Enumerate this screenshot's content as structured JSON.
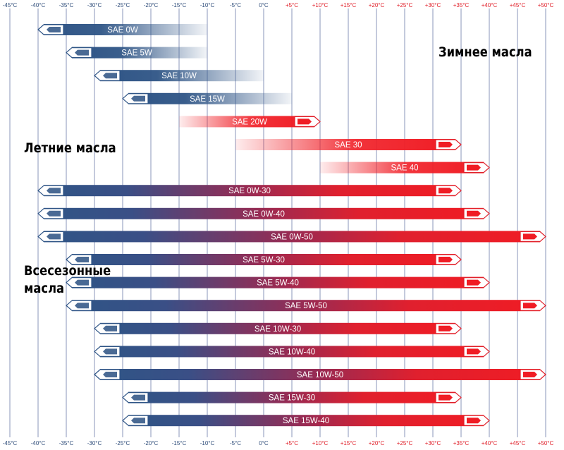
{
  "chart_data": {
    "type": "bar",
    "orientation": "horizontal-range",
    "x_ticks": [
      "-45°C",
      "-40°C",
      "-35°C",
      "-30°C",
      "-25°C",
      "-20°C",
      "-15°C",
      "-10°C",
      "-5°C",
      "0°C",
      "+5°C",
      "+10°C",
      "+15°C",
      "+20°C",
      "+25°C",
      "+30°C",
      "+35°C",
      "+40°C",
      "+45°C",
      "+50°C"
    ],
    "xlim": [
      -45,
      50
    ],
    "grid": true,
    "colors": {
      "cold": "#2f5586",
      "hot": "#f01c24",
      "negative_ticks": "#2f4d7a",
      "positive_ticks": "#e0202a",
      "grid": "#3a4f8c"
    },
    "bars": [
      {
        "label": "SAE 0W",
        "from": -40,
        "to": -10,
        "kind": "winter"
      },
      {
        "label": "SAE 5W",
        "from": -35,
        "to": -10,
        "kind": "winter"
      },
      {
        "label": "SAE 10W",
        "from": -30,
        "to": 0,
        "kind": "winter"
      },
      {
        "label": "SAE 15W",
        "from": -25,
        "to": 5,
        "kind": "winter"
      },
      {
        "label": "SAE 20W",
        "from": -15,
        "to": 10,
        "kind": "summer"
      },
      {
        "label": "SAE 30",
        "from": -5,
        "to": 35,
        "kind": "summer"
      },
      {
        "label": "SAE 40",
        "from": 10,
        "to": 40,
        "kind": "summer"
      },
      {
        "label": "SAE 0W-30",
        "from": -40,
        "to": 35,
        "kind": "all"
      },
      {
        "label": "SAE 0W-40",
        "from": -40,
        "to": 40,
        "kind": "all"
      },
      {
        "label": "SAE 0W-50",
        "from": -40,
        "to": 50,
        "kind": "all"
      },
      {
        "label": "SAE 5W-30",
        "from": -35,
        "to": 35,
        "kind": "all"
      },
      {
        "label": "SAE 5W-40",
        "from": -35,
        "to": 40,
        "kind": "all"
      },
      {
        "label": "SAE 5W-50",
        "from": -35,
        "to": 50,
        "kind": "all"
      },
      {
        "label": "SAE 10W-30",
        "from": -30,
        "to": 35,
        "kind": "all"
      },
      {
        "label": "SAE 10W-40",
        "from": -30,
        "to": 40,
        "kind": "all"
      },
      {
        "label": "SAE 10W-50",
        "from": -30,
        "to": 50,
        "kind": "all"
      },
      {
        "label": "SAE 15W-30",
        "from": -25,
        "to": 35,
        "kind": "all"
      },
      {
        "label": "SAE 15W-40",
        "from": -25,
        "to": 40,
        "kind": "all"
      }
    ],
    "annotations": {
      "winter": "Зимнее масла",
      "summer": "Летние масла",
      "all_season": "Всесезонные масла"
    }
  }
}
